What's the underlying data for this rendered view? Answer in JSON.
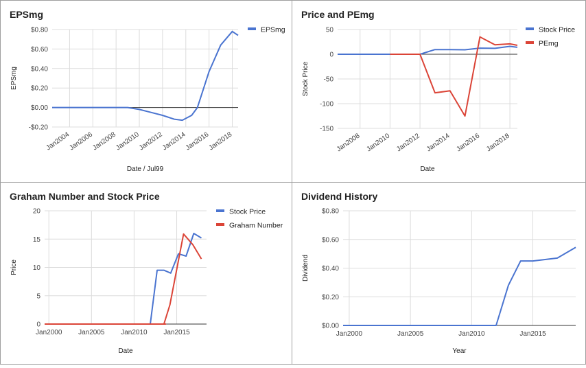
{
  "chart_data": [
    {
      "type": "line",
      "title": "EPSmg",
      "xlabel": "Date / Jul99",
      "ylabel": "EPSmg",
      "xlim": [
        2002.5,
        2018.5
      ],
      "ylim": [
        -0.2,
        0.8
      ],
      "yticks": [
        -0.2,
        0,
        0.2,
        0.4,
        0.6,
        0.8
      ],
      "ytick_labels": [
        "-$0.20",
        "$0.00",
        "$0.20",
        "$0.40",
        "$0.60",
        "$0.80"
      ],
      "xticks": [
        2004,
        2006,
        2008,
        2010,
        2012,
        2014,
        2016,
        2018
      ],
      "xtick_labels": [
        "Jan2004",
        "Jan2006",
        "Jan2008",
        "Jan2010",
        "Jan2012",
        "Jan2014",
        "Jan2016",
        "Jan2018"
      ],
      "rotate_xticks": true,
      "grid": true,
      "legend": "right",
      "series": [
        {
          "name": "EPSmg",
          "color": "#4a74d0",
          "x": [
            2002.5,
            2004,
            2006,
            2008,
            2009,
            2010,
            2011,
            2012,
            2013,
            2013.7,
            2014.5,
            2015,
            2016,
            2017,
            2018,
            2018.5
          ],
          "y": [
            0,
            0,
            0,
            0,
            0,
            -0.02,
            -0.05,
            -0.08,
            -0.12,
            -0.13,
            -0.08,
            0,
            0.37,
            0.64,
            0.78,
            0.74
          ]
        }
      ]
    },
    {
      "type": "line",
      "title": "Price and PEmg",
      "xlabel": "Date",
      "ylabel": "Stock Price",
      "xlim": [
        2006.5,
        2018.5
      ],
      "ylim": [
        -150,
        50
      ],
      "yticks": [
        -150,
        -100,
        -50,
        0,
        50
      ],
      "ytick_labels": [
        "-150",
        "-100",
        "-50",
        "0",
        "50"
      ],
      "xticks": [
        2008,
        2010,
        2012,
        2014,
        2016,
        2018
      ],
      "xtick_labels": [
        "Jan2008",
        "Jan2010",
        "Jan2012",
        "Jan2014",
        "Jan2016",
        "Jan2018"
      ],
      "rotate_xticks": true,
      "grid": true,
      "legend": "right",
      "series": [
        {
          "name": "Stock Price",
          "color": "#4a74d0",
          "x": [
            2006.5,
            2008,
            2010,
            2012,
            2013,
            2014,
            2015,
            2016,
            2017,
            2018,
            2018.5
          ],
          "y": [
            0,
            0,
            0,
            0,
            9.5,
            9.5,
            9,
            12.3,
            12,
            16,
            14
          ]
        },
        {
          "name": "PEmg",
          "color": "#db4437",
          "x": [
            2010,
            2011,
            2012,
            2013,
            2014,
            2015,
            2016,
            2017,
            2018,
            2018.5
          ],
          "y": [
            0,
            0,
            0,
            -78,
            -74,
            -125,
            35,
            19,
            21,
            18
          ]
        }
      ]
    },
    {
      "type": "line",
      "title": "Graham Number and Stock Price",
      "xlabel": "Date",
      "ylabel": "Price",
      "xlim": [
        1999.5,
        2018.5
      ],
      "ylim": [
        0,
        20
      ],
      "yticks": [
        0,
        5,
        10,
        15,
        20
      ],
      "ytick_labels": [
        "0",
        "5",
        "10",
        "15",
        "20"
      ],
      "xticks": [
        2000,
        2005,
        2010,
        2015
      ],
      "xtick_labels": [
        "Jan2000",
        "Jan2005",
        "Jan2010",
        "Jan2015"
      ],
      "rotate_xticks": false,
      "grid": true,
      "legend": "right",
      "series": [
        {
          "name": "Stock Price",
          "color": "#4a74d0",
          "x": [
            1999.5,
            2005,
            2010,
            2011.9,
            2012.7,
            2013.5,
            2014.3,
            2015.2,
            2016.1,
            2017,
            2017.9
          ],
          "y": [
            0,
            0,
            0,
            0,
            9.5,
            9.5,
            9,
            12.4,
            12,
            16,
            15.2
          ]
        },
        {
          "name": "Graham Number",
          "color": "#db4437",
          "x": [
            1999.5,
            2005,
            2010,
            2012.5,
            2013.7,
            2013.5,
            2014.2,
            2015.8,
            2016.9,
            2017.9
          ],
          "y": [
            0,
            0,
            0,
            0,
            0,
            0,
            3.4,
            15.9,
            14,
            11.5
          ]
        }
      ]
    },
    {
      "type": "line",
      "title": "Dividend History",
      "xlabel": "Year",
      "ylabel": "Dividend",
      "xlim": [
        1999.5,
        2018.5
      ],
      "ylim": [
        0,
        0.8
      ],
      "yticks": [
        0,
        0.2,
        0.4,
        0.6,
        0.8
      ],
      "ytick_labels": [
        "$0.00",
        "$0.20",
        "$0.40",
        "$0.60",
        "$0.80"
      ],
      "xticks": [
        2000,
        2005,
        2010,
        2015
      ],
      "xtick_labels": [
        "Jan2000",
        "Jan2005",
        "Jan2010",
        "Jan2015"
      ],
      "rotate_xticks": false,
      "grid": true,
      "legend": "none",
      "series": [
        {
          "name": "",
          "color": "#4a74d0",
          "x": [
            1999.5,
            2005,
            2010,
            2012,
            2013,
            2014,
            2015,
            2016,
            2017,
            2018.5
          ],
          "y": [
            0,
            0,
            0,
            0,
            0.28,
            0.45,
            0.45,
            0.46,
            0.47,
            0.545
          ]
        }
      ]
    }
  ]
}
